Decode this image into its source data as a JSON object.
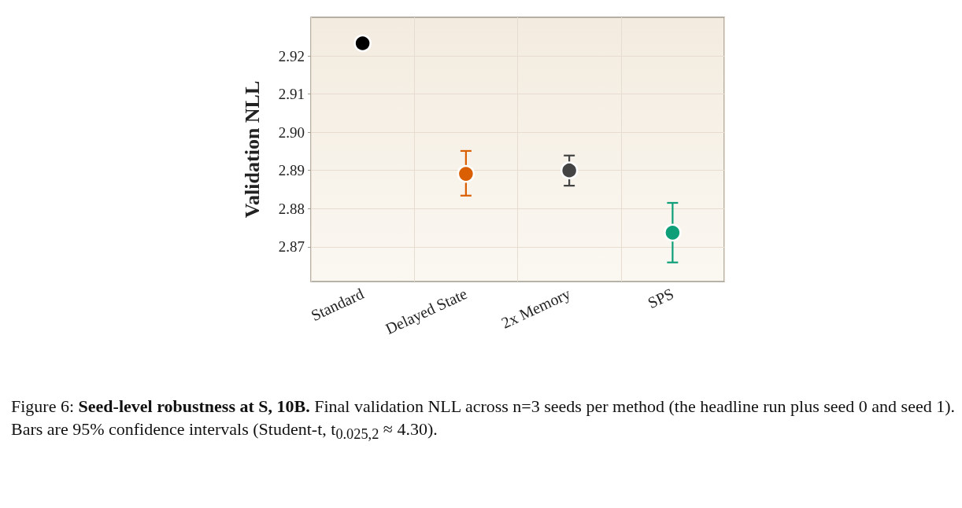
{
  "chart_data": {
    "type": "scatter",
    "title": "Seed-level robustness at S, 10B.",
    "ylabel": "Validation NLL",
    "categories": [
      "Standard",
      "Delayed State",
      "2x Memory",
      "SPS"
    ],
    "values": [
      2.9233,
      2.8891,
      2.89,
      2.8737
    ],
    "errors": [
      null,
      [
        2.8834,
        2.8951
      ],
      [
        2.886,
        2.8939
      ],
      [
        2.8659,
        2.8815
      ]
    ],
    "colors": [
      "#000000",
      "#d95f02",
      "#444444",
      "#0e9f78"
    ],
    "ylim": [
      2.8609,
      2.9301
    ],
    "yticks": [
      2.87,
      2.88,
      2.89,
      {
        "value": 2.9,
        "label": "2.90"
      },
      2.91,
      2.92
    ],
    "grid": true,
    "marker": "circle",
    "annotations": [
      "Figure 6:",
      "Final validation NLL across n=3 seeds per method (the headline run plus seed 0 and seed 1). Bars are 95% confidence intervals (Student-t, t$_{0.025,2}$ ≈ 4.30)."
    ]
  }
}
